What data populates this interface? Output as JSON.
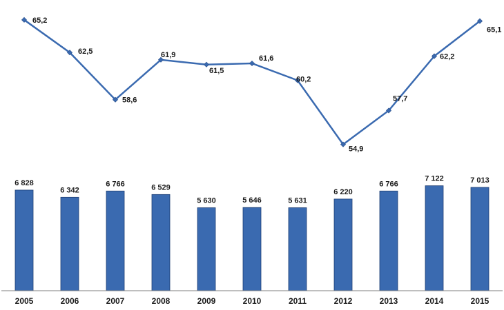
{
  "chart_data": [
    {
      "type": "line",
      "x": [
        "2005",
        "2006",
        "2007",
        "2008",
        "2009",
        "2010",
        "2011",
        "2012",
        "2013",
        "2014",
        "2015"
      ],
      "series": [
        {
          "values": [
            65.2,
            62.5,
            58.6,
            61.9,
            61.5,
            61.6,
            60.2,
            54.9,
            57.7,
            62.2,
            65.1
          ],
          "labels": [
            "65,2",
            "62,5",
            "58,6",
            "61,9",
            "61,5",
            "61,6",
            "60,2",
            "54,9",
            "57,7",
            "62,2",
            "65,1"
          ],
          "color": "#3a6ab0",
          "marker": "diamond"
        }
      ],
      "ylim": [
        53,
        66.5
      ],
      "grid": false
    },
    {
      "type": "bar",
      "categories": [
        "2005",
        "2006",
        "2007",
        "2008",
        "2009",
        "2010",
        "2011",
        "2012",
        "2013",
        "2014",
        "2015"
      ],
      "values": [
        6828,
        6342,
        6766,
        6529,
        5630,
        5646,
        5631,
        6220,
        6766,
        7122,
        7013
      ],
      "labels": [
        "6 828",
        "6 342",
        "6 766",
        "6 529",
        "5 630",
        "5 646",
        "5 631",
        "6 220",
        "6 766",
        "7 122",
        "7 013"
      ],
      "color": "#3a6ab0",
      "ylim": [
        0,
        8040
      ],
      "grid": false
    }
  ]
}
